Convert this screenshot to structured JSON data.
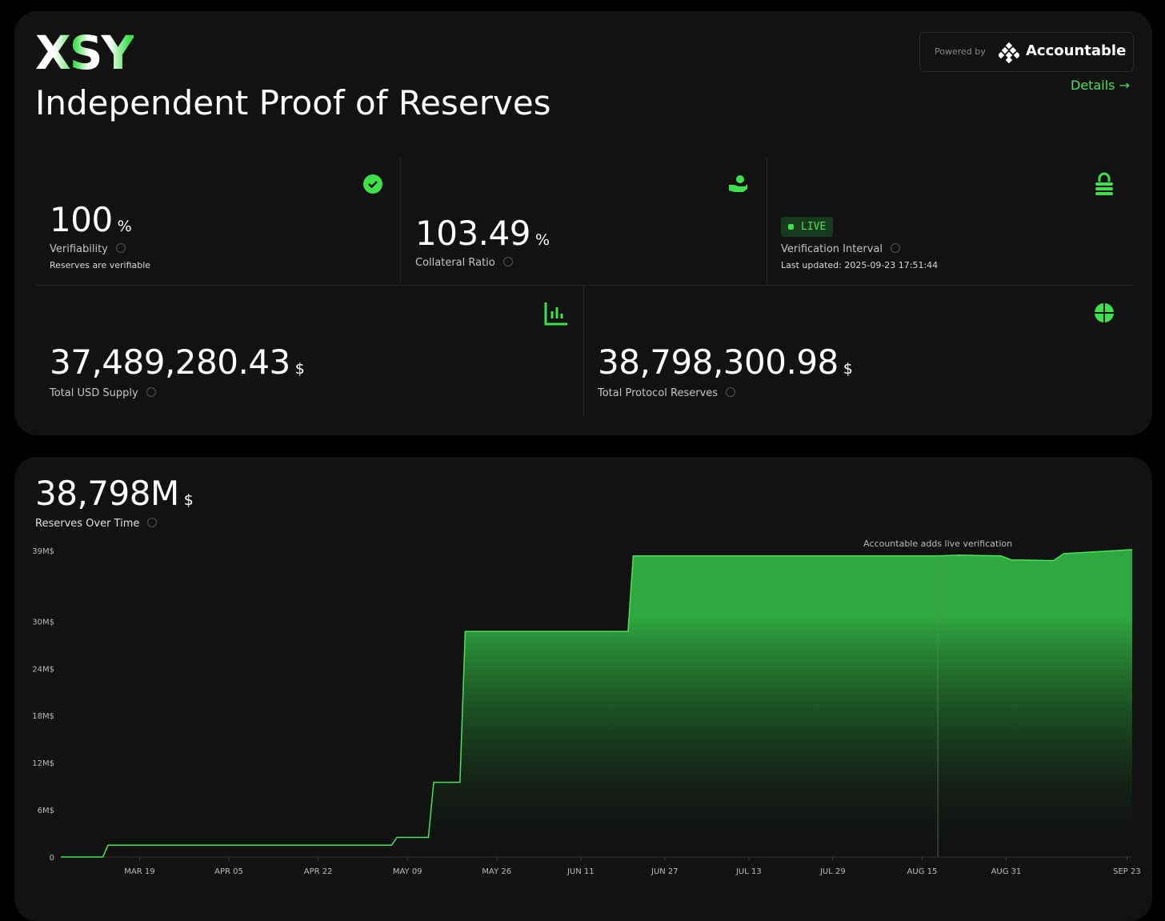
{
  "header": {
    "logo": "XSY",
    "title": "Independent Proof of Reserves",
    "powered_by": "Powered by",
    "brand": "Accountable",
    "details": "Details →"
  },
  "stats": [
    {
      "value": "100",
      "unit": "%",
      "label": "Verifiability",
      "note": "Reserves are verifiable"
    },
    {
      "value": "103.49",
      "unit": "%",
      "label": "Collateral Ratio"
    },
    {
      "badge": "LIVE",
      "label": "Verification Interval",
      "note": "Last updated: 2025-09-23 17:51:44"
    },
    {
      "value": "37,489,280.43",
      "unit": "$",
      "label": "Total USD Supply"
    },
    {
      "value": "38,798,300.98",
      "unit": "$",
      "label": "Total Protocol Reserves"
    }
  ],
  "chart_data": {
    "type": "area",
    "headline": "38,798M",
    "headline_unit": "$",
    "title": "Reserves Over Time",
    "color": "#4ae35a",
    "x": [
      "MAR 04",
      "MAR 12",
      "MAR 13",
      "MAY 06",
      "MAY 07",
      "MAY 13",
      "MAY 14",
      "MAY 19",
      "MAY 20",
      "JUN 20",
      "JUN 21",
      "AUG 18",
      "AUG 22",
      "AUG 30",
      "SEP 01",
      "SEP 09",
      "SEP 11",
      "SEP 24"
    ],
    "values": [
      0,
      0,
      1.5,
      1.5,
      2.5,
      2.5,
      9.5,
      9.5,
      28.7,
      28.7,
      38.3,
      38.3,
      38.4,
      38.3,
      37.8,
      37.7,
      38.6,
      39.1
    ],
    "xlim": [
      "MAR 04",
      "SEP 24"
    ],
    "xticks": [
      "MAR 19",
      "APR 05",
      "APR 22",
      "MAY 09",
      "MAY 26",
      "JUN 11",
      "JUN 27",
      "JUL 13",
      "JUL 29",
      "AUG 15",
      "AUG 31",
      "SEP 23"
    ],
    "ylim": [
      0,
      39.5
    ],
    "yticks": [
      0,
      {
        "value": 6,
        "label": "6M$"
      },
      {
        "value": 12,
        "label": "12M$"
      },
      {
        "value": 18,
        "label": "18M$"
      },
      {
        "value": 24,
        "label": "24M$"
      },
      {
        "value": 30,
        "label": "30M$"
      },
      {
        "value": 39,
        "label": "39M$"
      }
    ],
    "annotations": [
      {
        "text": "Accountable adds live verification",
        "x": "AUG 18"
      }
    ]
  }
}
